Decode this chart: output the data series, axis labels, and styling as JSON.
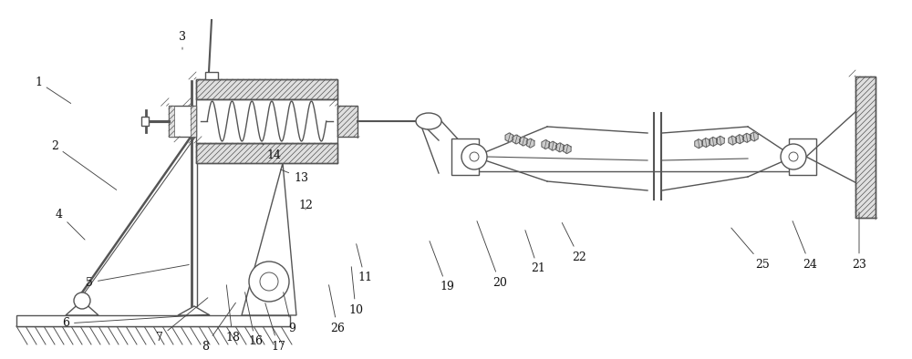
{
  "bg_color": "#ffffff",
  "line_color": "#555555",
  "fig_width": 10.0,
  "fig_height": 3.94,
  "dpi": 100
}
